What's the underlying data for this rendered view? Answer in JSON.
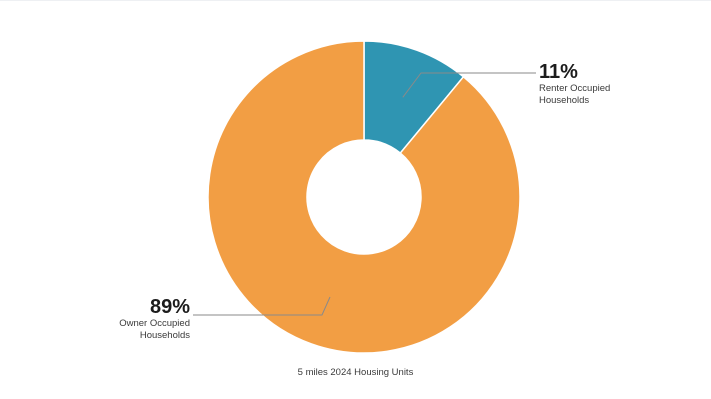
{
  "chart_data": {
    "type": "pie",
    "subtype": "donut",
    "caption": "5 miles 2024 Housing Units",
    "slices": [
      {
        "label": "Renter Occupied Households",
        "value": 11,
        "display": "11%",
        "color": "#2f95b2"
      },
      {
        "label": "Owner Occupied Households",
        "value": 89,
        "display": "89%",
        "color": "#f29e44"
      }
    ],
    "legend": "none",
    "grid": false
  }
}
